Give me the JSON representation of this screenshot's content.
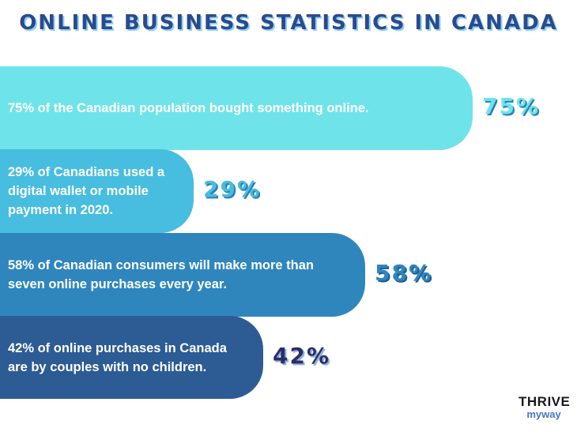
{
  "title": "ONLINE BUSINESS STATISTICS IN CANADA",
  "logo": {
    "top": "THRIVE",
    "bottom": "myway"
  },
  "colors": {
    "bar_75": "#6ee4ea",
    "bar_29": "#47bde0",
    "bar_58": "#2f86bd",
    "bar_42": "#2d5b94",
    "pct_75": "#6ee4ea",
    "pct_29": "#47bde0",
    "pct_58": "#2f86bd",
    "pct_42": "#2b2f66",
    "title": "#2b4a8e"
  },
  "chart_data": {
    "type": "bar",
    "orientation": "horizontal",
    "title": "ONLINE BUSINESS STATISTICS IN CANADA",
    "categories": [
      "75% of the Canadian population bought something online.",
      "29% of Canadians used a digital wallet or mobile payment in 2020.",
      "58% of Canadian consumers will make more than seven online purchases every year.",
      "42% of online purchases in Canada are by couples with no children."
    ],
    "values": [
      75,
      29,
      58,
      42
    ],
    "value_labels": [
      "75%",
      "29%",
      "58%",
      "42%"
    ],
    "unit": "%"
  }
}
